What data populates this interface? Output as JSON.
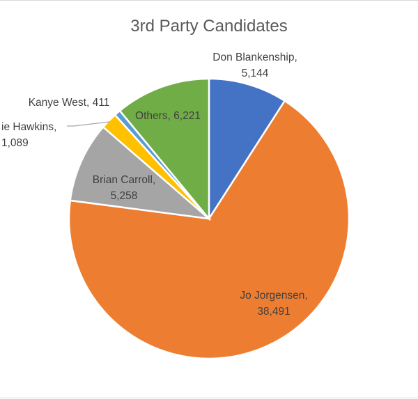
{
  "chart_data": {
    "type": "pie",
    "title": "3rd Party Candidates",
    "categories": [
      "Don Blankenship",
      "Jo Jorgensen",
      "Brian Carroll",
      "Howie Hawkins",
      "Kanye West",
      "Others"
    ],
    "values": [
      5144,
      38491,
      5258,
      1089,
      411,
      6221
    ],
    "colors": [
      "#4472C4",
      "#ED7D31",
      "#A5A5A5",
      "#FFC000",
      "#5B9BD5",
      "#70AD47"
    ],
    "labels": [
      {
        "name": "Don Blankenship,",
        "value": "5,144"
      },
      {
        "name": "Jo Jorgensen,",
        "value": "38,491"
      },
      {
        "name": "Brian Carroll,",
        "value": "5,258"
      },
      {
        "name": "ie Hawkins,",
        "value": "1,089"
      },
      {
        "name": "Kanye West, 411",
        "value": ""
      },
      {
        "name": "Others, 6,221",
        "value": ""
      }
    ],
    "legend": "none"
  }
}
